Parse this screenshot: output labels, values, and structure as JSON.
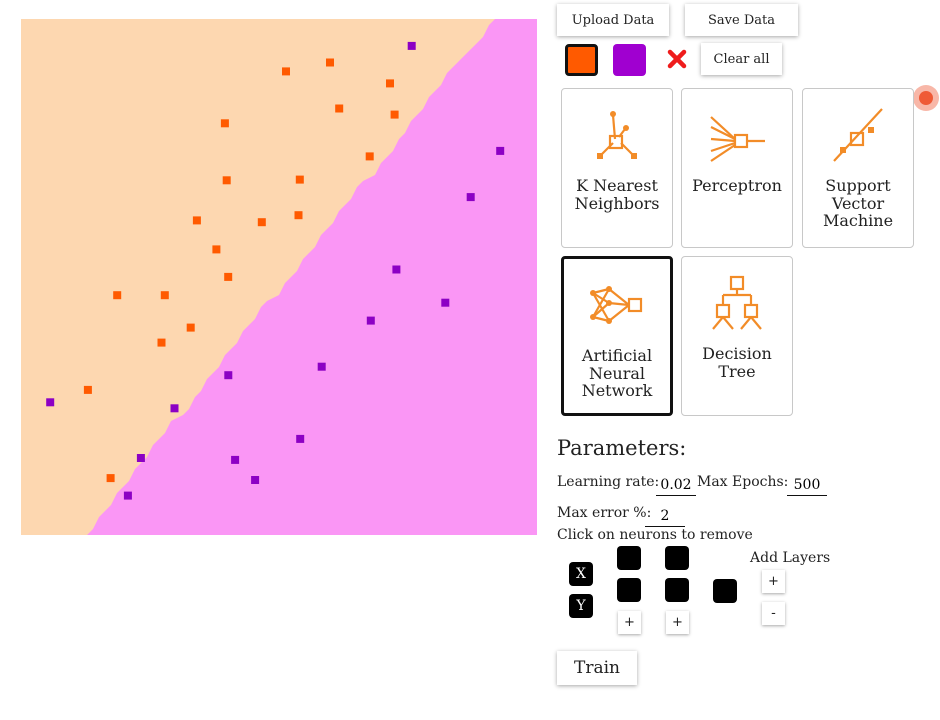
{
  "toolbar": {
    "upload_label": "Upload Data",
    "save_label": "Save Data",
    "clear_label": "Clear all"
  },
  "classes": [
    {
      "name": "orange",
      "point_color": "#ff5a00",
      "region_color": "#fdd7b0"
    },
    {
      "name": "purple",
      "point_color": "#8c00c4",
      "region_color": "#fa96f5"
    }
  ],
  "colors": {
    "swatch_orange": "#ff5a00",
    "swatch_purple": "#a000d0",
    "clear_x": "#ef1c1c",
    "icon_orange": "#f28c28",
    "record": "#ef5a36"
  },
  "plot": {
    "orange_points": [
      [
        0.5136,
        0.1015
      ],
      [
        0.5989,
        0.0843
      ],
      [
        0.7151,
        0.1248
      ],
      [
        0.6167,
        0.1734
      ],
      [
        0.7241,
        0.1853
      ],
      [
        0.3952,
        0.2021
      ],
      [
        0.6757,
        0.2662
      ],
      [
        0.3987,
        0.3125
      ],
      [
        0.5404,
        0.3112
      ],
      [
        0.3409,
        0.3904
      ],
      [
        0.4667,
        0.3938
      ],
      [
        0.5378,
        0.3802
      ],
      [
        0.3786,
        0.4466
      ],
      [
        0.4016,
        0.4998
      ],
      [
        0.1865,
        0.5353
      ],
      [
        0.2786,
        0.5353
      ],
      [
        0.3289,
        0.598
      ],
      [
        0.2723,
        0.6272
      ],
      [
        0.1296,
        0.7188
      ],
      [
        0.1737,
        0.8897
      ]
    ],
    "purple_points": [
      [
        0.7571,
        0.0521
      ],
      [
        0.9286,
        0.2557
      ],
      [
        0.8716,
        0.3452
      ],
      [
        0.7276,
        0.4855
      ],
      [
        0.8222,
        0.5498
      ],
      [
        0.6779,
        0.5845
      ],
      [
        0.5827,
        0.6738
      ],
      [
        0.4017,
        0.6904
      ],
      [
        0.0565,
        0.7429
      ],
      [
        0.2974,
        0.7545
      ],
      [
        0.541,
        0.8137
      ],
      [
        0.2323,
        0.8508
      ],
      [
        0.4149,
        0.8545
      ],
      [
        0.4536,
        0.8934
      ],
      [
        0.2072,
        0.9237
      ]
    ]
  },
  "algorithms": [
    {
      "id": "knn",
      "label": "K Nearest Neighbors",
      "selected": false
    },
    {
      "id": "perceptron",
      "label": "Perceptron",
      "selected": false
    },
    {
      "id": "svm",
      "label": "Support Vector Machine",
      "selected": false
    },
    {
      "id": "ann",
      "label": "Artificial Neural Network",
      "selected": true
    },
    {
      "id": "tree",
      "label": "Decision Tree",
      "selected": false
    }
  ],
  "parameters": {
    "title": "Parameters:",
    "learning_rate_label": "Learning rate:",
    "learning_rate_value": "0.02",
    "max_epochs_label": "Max Epochs:",
    "max_epochs_value": "500",
    "max_error_label": "Max error %:",
    "max_error_value": "2",
    "neurons_note": "Click on neurons to remove"
  },
  "network": {
    "input_x": "X",
    "input_y": "Y",
    "add_neuron_label": "+",
    "add_layers_label": "Add Layers",
    "add_layer_plus": "+",
    "remove_layer_minus": "-"
  },
  "train_label": "Train"
}
